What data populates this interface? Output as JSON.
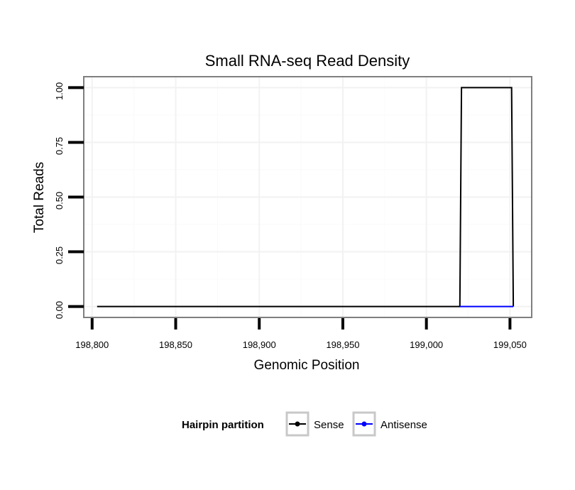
{
  "chart_data": {
    "type": "line",
    "title": "Small RNA-seq Read Density",
    "xlabel": "Genomic Position",
    "ylabel": "Total Reads",
    "xlim": [
      198795,
      199063
    ],
    "ylim": [
      -0.05,
      1.05
    ],
    "x_ticks": [
      198800,
      198850,
      198900,
      198950,
      199000,
      199050
    ],
    "x_tick_labels": [
      "198,800",
      "198,850",
      "198,900",
      "198,950",
      "199,000",
      "199,050"
    ],
    "y_ticks": [
      0,
      0.25,
      0.5,
      0.75,
      1.0
    ],
    "y_tick_labels": [
      "0.00",
      "0.25",
      "0.50",
      "0.75",
      "1.00"
    ],
    "grid": true,
    "legend_placement": "bottom",
    "legend_title": "Hairpin partition",
    "series": [
      {
        "name": "Sense",
        "color": "#000000",
        "x": [
          198803,
          199020,
          199021,
          199051,
          199052
        ],
        "y": [
          0,
          0,
          1,
          1,
          0
        ]
      },
      {
        "name": "Antisense",
        "color": "#0000ff",
        "x": [
          199020,
          199052
        ],
        "y": [
          0,
          0
        ]
      }
    ]
  }
}
